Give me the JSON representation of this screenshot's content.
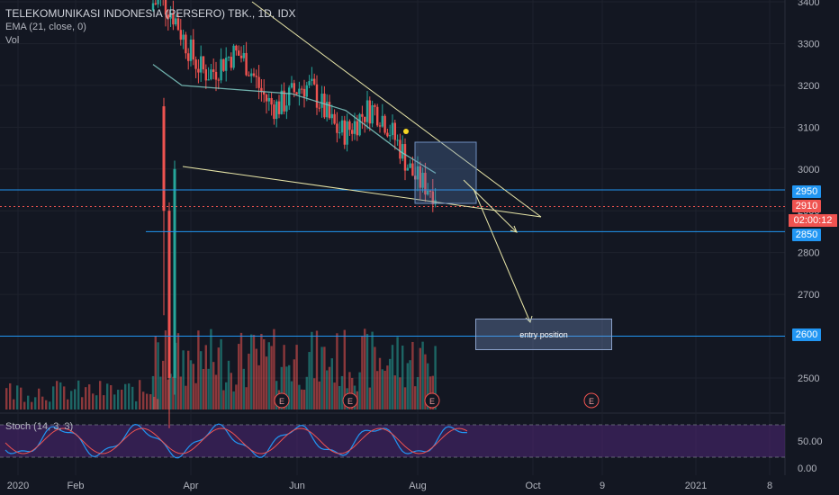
{
  "legend": {
    "title": "TELEKOMUNIKASI INDONESIA (PERSERO) TBK., 1D, IDX",
    "ema": "EMA (21, close, 0)",
    "vol": "Vol",
    "stoch": "Stoch (14, 3, 3)"
  },
  "price_tags": {
    "p2950": "2950",
    "p2910": "2910",
    "timer": "02:00:12",
    "p2850": "2850",
    "p2600": "2600"
  },
  "annotation": {
    "entry": "entry position"
  },
  "events": [
    "E",
    "E",
    "E",
    "E"
  ],
  "colors": {
    "up": "#26a69a",
    "down": "#ef5350",
    "ema": "#80cbc4",
    "hline": "#2196f3",
    "trend": "#e8e6a8",
    "stoch_k": "#2196f3",
    "stoch_d": "#ef5350",
    "stoch_band": "#4a2570"
  },
  "chart_data": {
    "type": "candlestick",
    "y_axis": {
      "range": [
        2380,
        3420
      ],
      "ticks": [
        3400,
        3300,
        3200,
        3100,
        3000,
        2900,
        2800,
        2700,
        2600,
        2500
      ]
    },
    "x_axis": {
      "ticks": [
        "2020",
        "Feb",
        "Apr",
        "Jun",
        "Aug",
        "Oct",
        "9",
        "2021",
        "8"
      ]
    },
    "horizontal_lines": [
      2950,
      2910,
      2850,
      2600
    ],
    "stoch_axis": {
      "ticks": [
        "50.00",
        "0.00"
      ]
    },
    "series": [
      {
        "name": "Price",
        "segments": [
          {
            "x0": "2020-03-16",
            "x1": "2020-04-01",
            "start": 3400,
            "end": 3300
          },
          {
            "x0": "2020-04-01",
            "x1": "2020-06-01",
            "start": 3300,
            "end": 3170
          },
          {
            "x0": "2020-06-01",
            "x1": "2020-08-01",
            "start": 3170,
            "end": 3080
          },
          {
            "x0": "2020-08-01",
            "x1": "2020-08-20",
            "start": 3080,
            "end": 2910
          }
        ]
      },
      {
        "name": "EMA (21, close, 0)",
        "points": [
          [
            "2020-03-16",
            3250
          ],
          [
            "2020-04-01",
            3200
          ],
          [
            "2020-05-01",
            3190
          ],
          [
            "2020-06-01",
            3180
          ],
          [
            "2020-07-01",
            3140
          ],
          [
            "2020-08-01",
            3040
          ],
          [
            "2020-08-20",
            2990
          ]
        ]
      }
    ]
  }
}
